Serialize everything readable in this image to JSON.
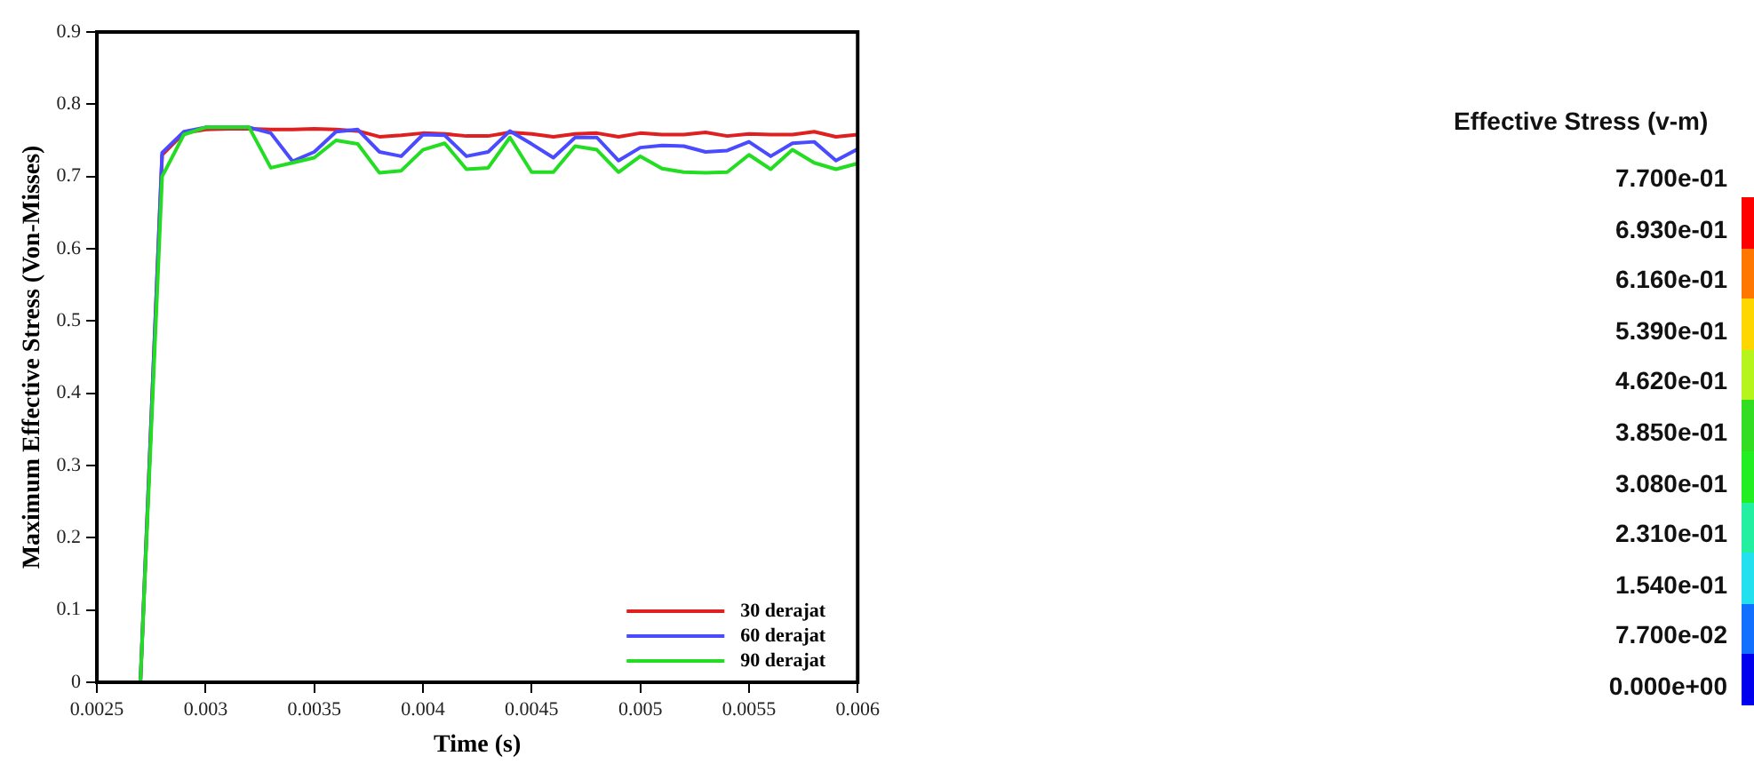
{
  "chart_data": [
    {
      "type": "line",
      "xlabel": "Time (s)",
      "ylabel": "Maximum Effective Stress (Von-Misses)",
      "xlim": [
        0.0025,
        0.006
      ],
      "xticks": [
        0.0025,
        0.003,
        0.0035,
        0.004,
        0.0045,
        0.005,
        0.0055,
        0.006
      ],
      "ylim": [
        0,
        0.9
      ],
      "yticks": [
        0,
        0.1,
        0.2,
        0.3,
        0.4,
        0.5,
        0.6,
        0.7,
        0.8,
        0.9
      ],
      "grid": false,
      "legend": "bottom right",
      "marker": "none",
      "line_style": "solid",
      "x": [
        0.0027,
        0.0028,
        0.0029,
        0.003,
        0.0031,
        0.0032,
        0.0033,
        0.0034,
        0.0035,
        0.0036,
        0.0037,
        0.0038,
        0.0039,
        0.004,
        0.0041,
        0.0042,
        0.0043,
        0.0044,
        0.0045,
        0.0046,
        0.0047,
        0.0048,
        0.0049,
        0.005,
        0.0051,
        0.0052,
        0.0053,
        0.0054,
        0.0055,
        0.0056,
        0.0057,
        0.0058,
        0.0059,
        0.006
      ],
      "series": [
        {
          "name": "30 derajat",
          "color": "#e02020",
          "values": [
            0,
            0.73,
            0.76,
            0.765,
            0.766,
            0.766,
            0.765,
            0.765,
            0.766,
            0.765,
            0.763,
            0.755,
            0.757,
            0.76,
            0.759,
            0.756,
            0.756,
            0.761,
            0.759,
            0.755,
            0.759,
            0.76,
            0.755,
            0.76,
            0.758,
            0.758,
            0.761,
            0.756,
            0.759,
            0.758,
            0.758,
            0.762,
            0.755,
            0.758
          ]
        },
        {
          "name": "60 derajat",
          "color": "#4a4aff",
          "values": [
            0,
            0.733,
            0.762,
            0.768,
            0.768,
            0.768,
            0.76,
            0.721,
            0.734,
            0.762,
            0.765,
            0.734,
            0.728,
            0.758,
            0.757,
            0.728,
            0.734,
            0.763,
            0.745,
            0.726,
            0.754,
            0.754,
            0.722,
            0.74,
            0.743,
            0.742,
            0.734,
            0.736,
            0.748,
            0.728,
            0.746,
            0.748,
            0.722,
            0.738
          ]
        },
        {
          "name": "90 derajat",
          "color": "#22dd22",
          "values": [
            0,
            0.7,
            0.758,
            0.768,
            0.768,
            0.768,
            0.712,
            0.719,
            0.726,
            0.75,
            0.745,
            0.705,
            0.708,
            0.737,
            0.746,
            0.71,
            0.712,
            0.754,
            0.706,
            0.706,
            0.742,
            0.737,
            0.706,
            0.728,
            0.711,
            0.706,
            0.705,
            0.706,
            0.73,
            0.71,
            0.737,
            0.719,
            0.71,
            0.718
          ]
        }
      ]
    },
    {
      "type": "other",
      "title": "Effective Stress (v-m)",
      "annotations": [
        "7.700e-01",
        "6.930e-01",
        "6.160e-01",
        "5.390e-01",
        "4.620e-01",
        "3.850e-01",
        "3.080e-01",
        "2.310e-01",
        "1.540e-01",
        "7.700e-02",
        "0.000e+00"
      ],
      "colors": [
        "#ff0000",
        "#ff7700",
        "#ffd700",
        "#b5f51c",
        "#33dd22",
        "#22ee22",
        "#22f0a0",
        "#22e0ee",
        "#1170ff",
        "#0000ee"
      ]
    }
  ]
}
